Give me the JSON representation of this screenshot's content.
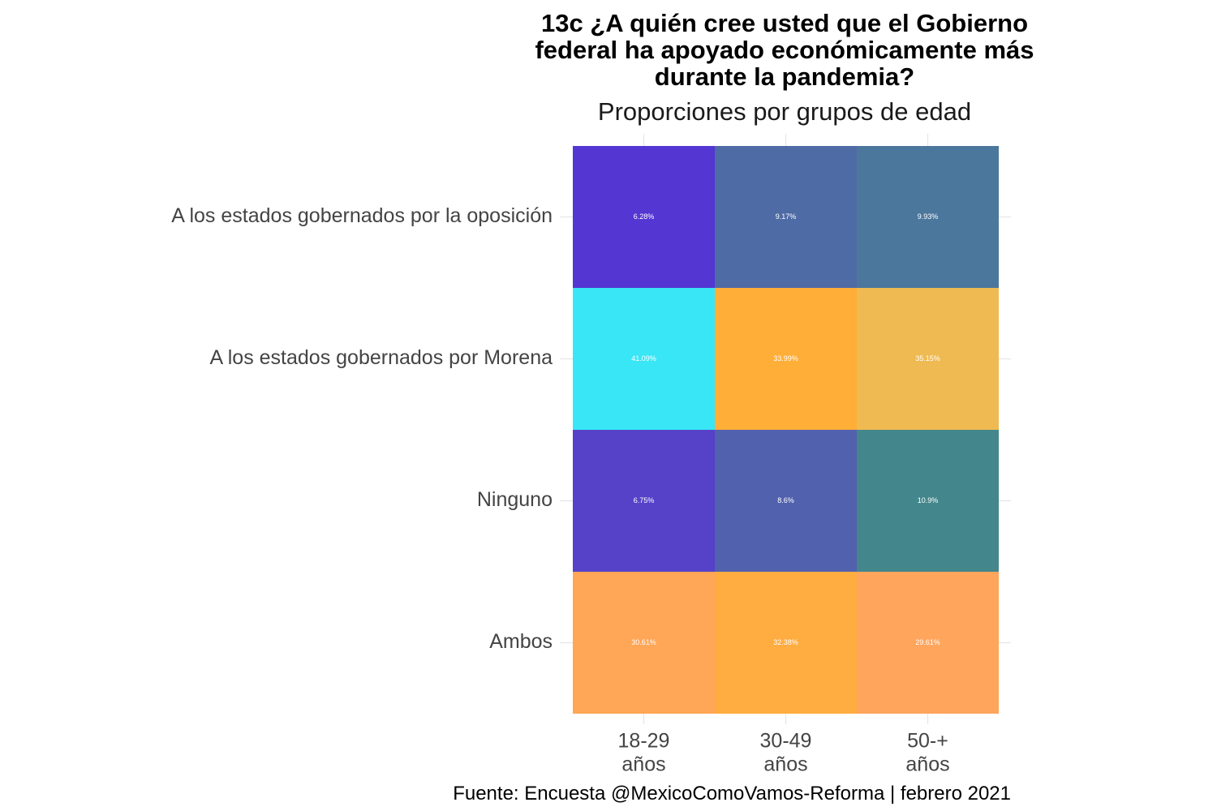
{
  "chart_data": {
    "type": "heatmap",
    "title_lines": [
      "13c ¿A quién cree usted que el Gobierno",
      "federal ha apoyado económicamente más",
      "durante la pandemia?"
    ],
    "subtitle": "Proporciones por grupos de edad",
    "caption": "Fuente: Encuesta @MexicoComoVamos-Reforma | febrero 2021",
    "x_categories": [
      {
        "lines": [
          "18-29",
          "años"
        ]
      },
      {
        "lines": [
          "30-49",
          "años"
        ]
      },
      {
        "lines": [
          "50-+",
          "años"
        ]
      }
    ],
    "y_categories": [
      "A los estados gobernados por la oposición",
      "A los estados gobernados por Morena",
      "Ninguno",
      "Ambos"
    ],
    "values": [
      [
        6.28,
        9.17,
        9.93
      ],
      [
        41.09,
        33.99,
        35.15
      ],
      [
        6.75,
        8.6,
        10.9
      ],
      [
        30.61,
        32.38,
        29.61
      ]
    ],
    "labels": [
      [
        "6.28%",
        "9.17%",
        "9.93%"
      ],
      [
        "41.09%",
        "33.99%",
        "35.15%"
      ],
      [
        "6.75%",
        "8.6%",
        "10.9%"
      ],
      [
        "30.61%",
        "32.38%",
        "29.61%"
      ]
    ],
    "colors": [
      [
        "#5436d2",
        "#4f6ba6",
        "#4c779d"
      ],
      [
        "#39e6f6",
        "#ffae37",
        "#efba51"
      ],
      [
        "#5641c9",
        "#5261ae",
        "#43878c"
      ],
      [
        "#ffa657",
        "#ffac40",
        "#ffa55c"
      ]
    ],
    "grid": true,
    "legend": "none"
  }
}
